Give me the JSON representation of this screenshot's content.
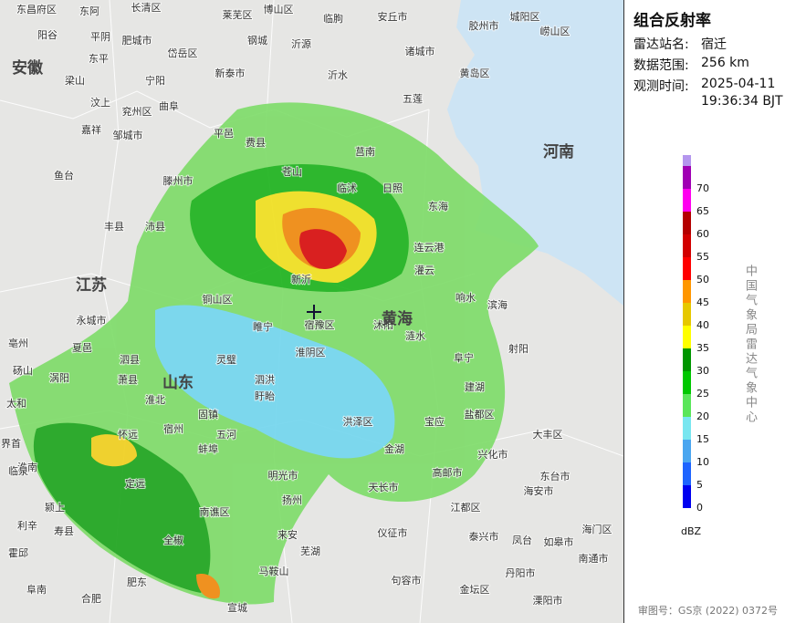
{
  "panel": {
    "title": "组合反射率",
    "station_label": "雷达站名:",
    "station": "宿迁",
    "range_label": "数据范围:",
    "range": "256 km",
    "time_label": "观测时间:",
    "date": "2025-04-11",
    "time": "19:36:34 BJT",
    "unit": "dBZ",
    "credit": "中国气象局雷达气象中心"
  },
  "legend": [
    {
      "value": 0,
      "color": "#0000f0"
    },
    {
      "value": 5,
      "color": "#1e64ff"
    },
    {
      "value": 10,
      "color": "#4aa6f0"
    },
    {
      "value": 15,
      "color": "#78e6f0"
    },
    {
      "value": 20,
      "color": "#5ae65a"
    },
    {
      "value": 25,
      "color": "#00c800"
    },
    {
      "value": 30,
      "color": "#009600"
    },
    {
      "value": 35,
      "color": "#ffff00"
    },
    {
      "value": 40,
      "color": "#e6c800"
    },
    {
      "value": 45,
      "color": "#ff9600"
    },
    {
      "value": 50,
      "color": "#ff0000"
    },
    {
      "value": 55,
      "color": "#d20000"
    },
    {
      "value": 60,
      "color": "#b40000"
    },
    {
      "value": 65,
      "color": "#ff00f0"
    },
    {
      "value": 70,
      "color": "#a000b4"
    }
  ],
  "legend_top_color": "#b496ee",
  "footer": "审图号：GS京 (2022) 0372号",
  "map": {
    "labels": [
      "东昌府区",
      "东阿",
      "长清区",
      "莱芜区",
      "博山区",
      "临朐",
      "安丘市",
      "胶州市",
      "城阳区",
      "阳谷",
      "平阴",
      "肥城市",
      "钢城",
      "沂源",
      "诸城市",
      "崂山区",
      "东平",
      "岱岳区",
      "黄岛区",
      "梁山",
      "宁阳",
      "新泰市",
      "沂水",
      "五莲",
      "汶上",
      "兖州区",
      "曲阜",
      "费县",
      "莒南",
      "日照",
      "嘉祥",
      "邹城市",
      "平邑",
      "临沭",
      "鱼台",
      "滕州市",
      "苍山",
      "东海",
      "丰县",
      "沛县",
      "铜山区",
      "新沂",
      "灌云",
      "连云港",
      "睢宁",
      "宿豫区",
      "沭阳",
      "涟水",
      "响水",
      "滨海",
      "阜宁",
      "射阳",
      "泗县",
      "灵璧",
      "泗洪",
      "淮阴区",
      "盱眙",
      "洪泽区",
      "金湖",
      "宝应",
      "建湖",
      "盐都区",
      "大丰区",
      "固镇",
      "五河",
      "蚌埠",
      "明光市",
      "天长市",
      "高邮市",
      "兴化市",
      "东台市",
      "定远",
      "来安",
      "扬州",
      "海安市",
      "泰兴市",
      "如皋市",
      "南通市",
      "海门区",
      "江都区",
      "仪征市",
      "句容市",
      "丹阳市",
      "金坛区",
      "溧阳市",
      "宣城",
      "芜湖",
      "马鞍山",
      "南谯区",
      "全椒",
      "肥东",
      "合肥",
      "霍邱",
      "寿县",
      "淮南",
      "颍上",
      "阜南",
      "临泉",
      "太和",
      "界首",
      "亳州",
      "涡阳",
      "利辛",
      "永城市",
      "砀山",
      "夏邑",
      "萧县",
      "淮北",
      "宿州",
      "怀远",
      "凤台",
      "江苏",
      "山东",
      "安徽",
      "河南",
      "黄海"
    ]
  }
}
